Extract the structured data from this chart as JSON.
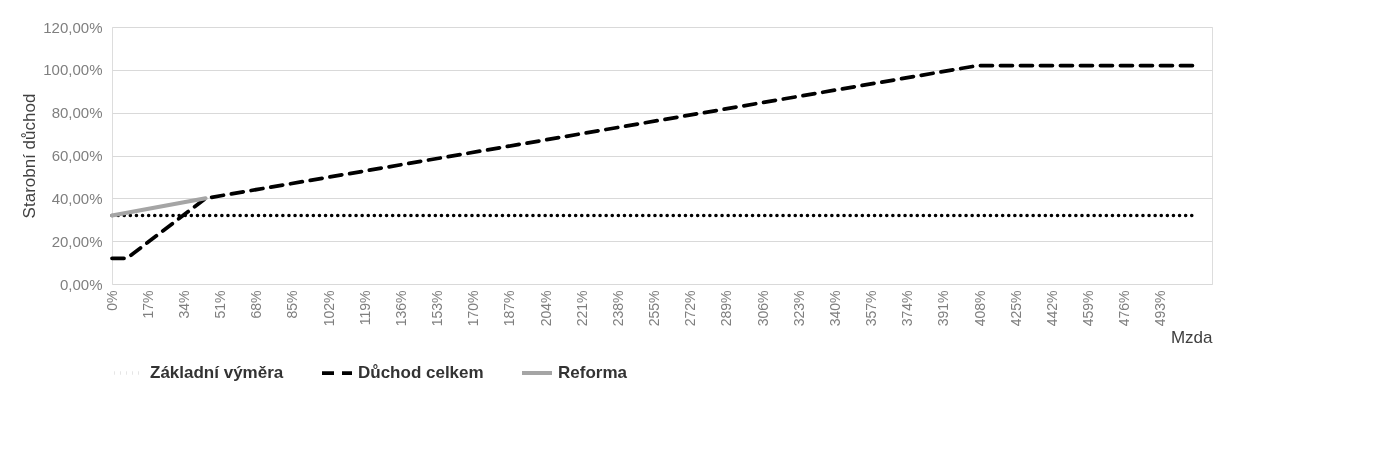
{
  "chart_data": {
    "type": "line",
    "ylabel": "Starobní důchod",
    "xlabel": "Mzda",
    "xlim": [
      0,
      517
    ],
    "xticks": [
      {
        "value": 0,
        "label": "0%"
      },
      {
        "value": 17,
        "label": "17%"
      },
      {
        "value": 34,
        "label": "34%"
      },
      {
        "value": 51,
        "label": "51%"
      },
      {
        "value": 68,
        "label": "68%"
      },
      {
        "value": 85,
        "label": "85%"
      },
      {
        "value": 102,
        "label": "102%"
      },
      {
        "value": 119,
        "label": "119%"
      },
      {
        "value": 136,
        "label": "136%"
      },
      {
        "value": 153,
        "label": "153%"
      },
      {
        "value": 170,
        "label": "170%"
      },
      {
        "value": 187,
        "label": "187%"
      },
      {
        "value": 204,
        "label": "204%"
      },
      {
        "value": 221,
        "label": "221%"
      },
      {
        "value": 238,
        "label": "238%"
      },
      {
        "value": 255,
        "label": "255%"
      },
      {
        "value": 272,
        "label": "272%"
      },
      {
        "value": 289,
        "label": "289%"
      },
      {
        "value": 306,
        "label": "306%"
      },
      {
        "value": 323,
        "label": "323%"
      },
      {
        "value": 340,
        "label": "340%"
      },
      {
        "value": 357,
        "label": "357%"
      },
      {
        "value": 374,
        "label": "374%"
      },
      {
        "value": 391,
        "label": "391%"
      },
      {
        "value": 408,
        "label": "408%"
      },
      {
        "value": 425,
        "label": "425%"
      },
      {
        "value": 442,
        "label": "442%"
      },
      {
        "value": 459,
        "label": "459%"
      },
      {
        "value": 476,
        "label": "476%"
      },
      {
        "value": 493,
        "label": "493%"
      }
    ],
    "ylim": [
      0,
      120
    ],
    "yticks": [
      {
        "value": 0,
        "label": "0,00%"
      },
      {
        "value": 20,
        "label": "20,00%"
      },
      {
        "value": 40,
        "label": "40,00%"
      },
      {
        "value": 60,
        "label": "60,00%"
      },
      {
        "value": 80,
        "label": "80,00%"
      },
      {
        "value": 100,
        "label": "100,00%"
      },
      {
        "value": 120,
        "label": "120,00%"
      }
    ],
    "grid": "y",
    "legend": "bottom",
    "marker": "none",
    "series": [
      {
        "name": "Základní výměra",
        "color": "#000000",
        "line_style": "dotted",
        "x": [
          0,
          510
        ],
        "values": [
          32,
          32
        ]
      },
      {
        "name": "Důchod celkem",
        "color": "#000000",
        "line_style": "dashed",
        "x": [
          0,
          7,
          44,
          407,
          510
        ],
        "values": [
          12,
          12,
          40,
          102,
          102
        ]
      },
      {
        "name": "Reforma",
        "color": "#a5a5a5",
        "line_style": "solid",
        "x": [
          0,
          44
        ],
        "values": [
          32,
          40
        ]
      }
    ]
  }
}
